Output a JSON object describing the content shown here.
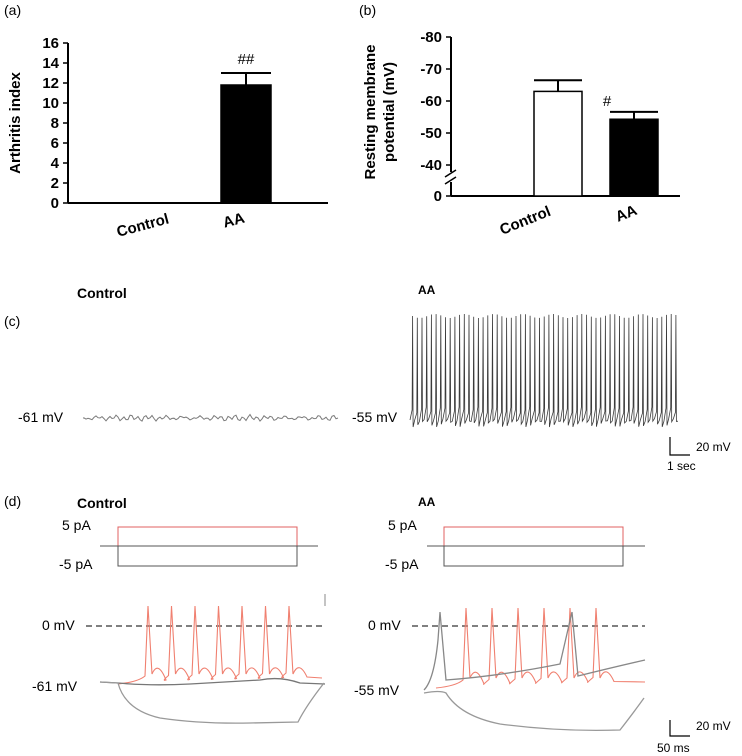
{
  "panels": {
    "a": "(a)",
    "b": "(b)",
    "c": "(c)",
    "d": "(d)"
  },
  "chart_data": [
    {
      "type": "bar",
      "panel": "(a)",
      "ylabel": "Arthritis index",
      "categories": [
        "Control",
        "AA"
      ],
      "values": [
        0,
        11.8
      ],
      "errors": [
        0,
        1.2
      ],
      "annotations": [
        "",
        "##"
      ],
      "yticks": [
        0,
        2,
        4,
        6,
        8,
        10,
        12,
        14,
        16
      ],
      "ylim": [
        0,
        16
      ],
      "bar_fill": [
        "#ffffff",
        "#000000"
      ]
    },
    {
      "type": "bar",
      "panel": "(b)",
      "ylabel_line1": "Resting membrane",
      "ylabel_line2": "potential (mV)",
      "categories": [
        "Control",
        "AA"
      ],
      "values": [
        -63,
        -54.3
      ],
      "errors": [
        3.5,
        2.3
      ],
      "annotations": [
        "",
        "#"
      ],
      "yticks": [
        "0",
        "-40",
        "-50",
        "-60",
        "-70",
        "-80"
      ],
      "ylim": [
        -35,
        -80
      ],
      "axis_break": true,
      "bar_fill": [
        "#ffffff",
        "#000000"
      ]
    },
    {
      "type": "line",
      "panel": "(c)",
      "traces": [
        {
          "name": "Control",
          "resting_label": "-61 mV",
          "spikes_per_trace": 0,
          "color": "#7a7a7a"
        },
        {
          "name": "AA",
          "resting_label": "-55 mV",
          "spikes_per_trace": 57,
          "color": "#3a3a3a"
        }
      ],
      "scalebar": {
        "vertical": "20 mV",
        "horizontal": "1 sec"
      }
    },
    {
      "type": "line",
      "panel": "(d)",
      "groups": [
        {
          "name": "Control",
          "step_labels": [
            "5 pA",
            "-5 pA"
          ],
          "zero_label": "0 mV",
          "resting_label": "-61 mV",
          "spike_count": 7
        },
        {
          "name": "AA",
          "step_labels": [
            "5 pA",
            "-5 pA"
          ],
          "zero_label": "0 mV",
          "resting_label": "-55 mV",
          "spike_count": 6
        }
      ],
      "colors": {
        "depolarizing": "#f08070",
        "hyperpolarizing": "#999999"
      },
      "scalebar": {
        "vertical": "20 mV",
        "horizontal": "50 ms"
      }
    }
  ]
}
